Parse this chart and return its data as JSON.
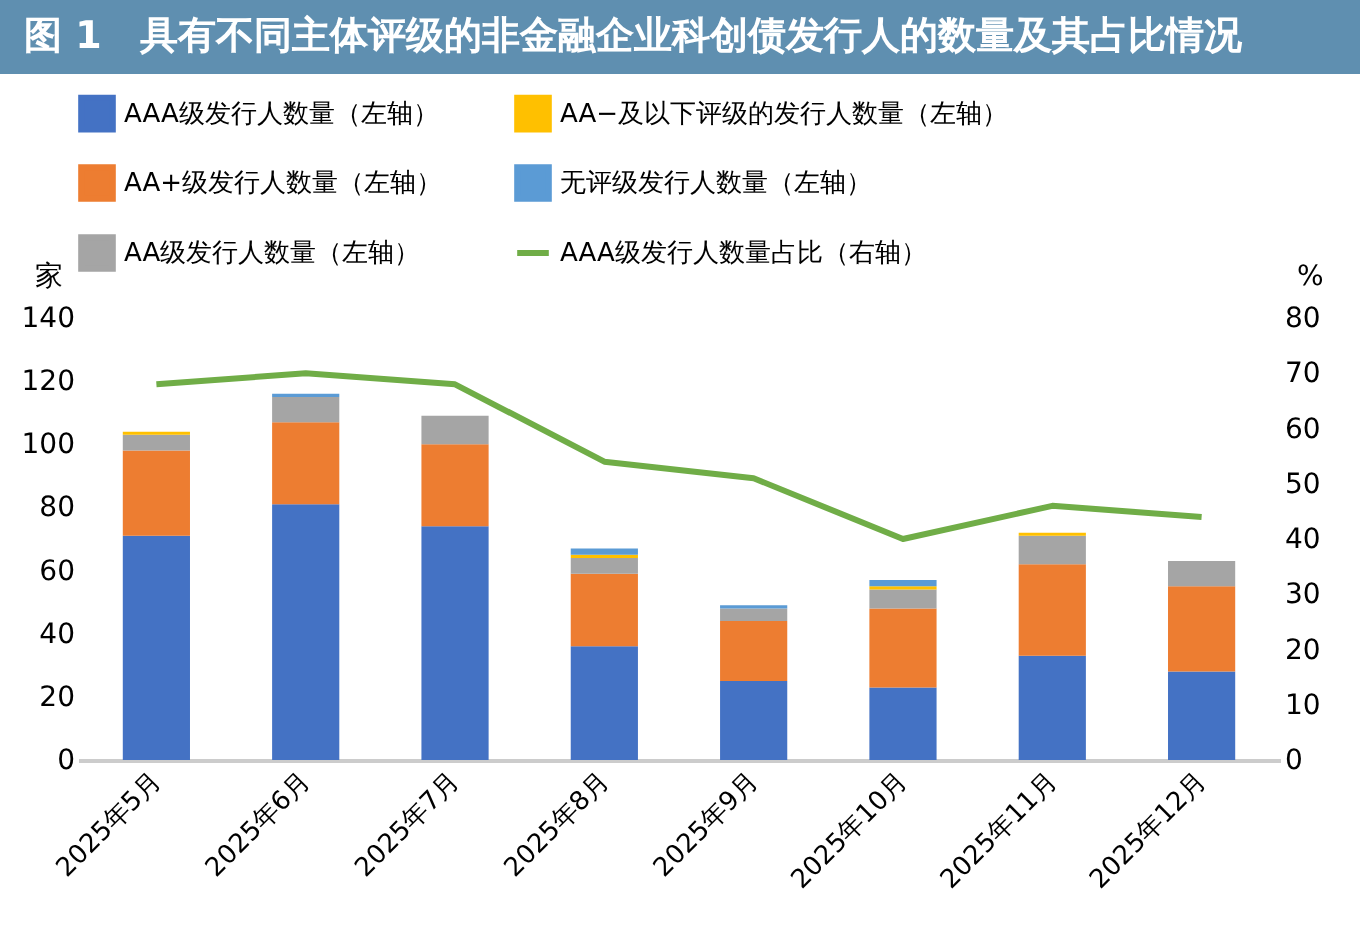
{
  "chart_data": {
    "type": "bar",
    "title": "图 1　具有不同主体评级的非金融企业科创债发行人的数量及其占比情况",
    "categories": [
      "2025年5月",
      "2025年6月",
      "2025年7月",
      "2025年8月",
      "2025年9月",
      "2025年10月",
      "2025年11月",
      "2025年12月"
    ],
    "stacked": true,
    "series": [
      {
        "name": "AAA级发行人数量（左轴）",
        "color": "#4472c4",
        "values": [
          71,
          81,
          74,
          36,
          25,
          23,
          33,
          28
        ]
      },
      {
        "name": "AA+级发行人数量（左轴）",
        "color": "#ed7d31",
        "values": [
          27,
          26,
          26,
          23,
          19,
          25,
          29,
          27
        ]
      },
      {
        "name": "AA级发行人数量（左轴）",
        "color": "#a5a5a5",
        "values": [
          5,
          8,
          9,
          5,
          4,
          6,
          9,
          8
        ]
      },
      {
        "name": "AA−及以下评级的发行人数量（左轴）",
        "color": "#ffc000",
        "values": [
          1,
          0,
          0,
          1,
          0,
          1,
          1,
          0
        ]
      },
      {
        "name": "无评级发行人数量（左轴）",
        "color": "#5b9bd5",
        "values": [
          0,
          1,
          0,
          2,
          1,
          2,
          0,
          0
        ]
      },
      {
        "name": "AAA级发行人数量占比（右轴）",
        "type": "line",
        "axis": "y2",
        "color": "#70ad47",
        "values": [
          68,
          70,
          68,
          54,
          51,
          40,
          46,
          44
        ]
      }
    ],
    "ylabel": "家",
    "y2label": "%",
    "ylim": [
      0,
      140
    ],
    "yticks": [
      0,
      20,
      40,
      60,
      80,
      100,
      120,
      140
    ],
    "y2lim": [
      0,
      80
    ],
    "y2ticks": [
      0,
      10,
      20,
      30,
      40,
      50,
      60,
      70,
      80
    ],
    "legend": "top"
  }
}
